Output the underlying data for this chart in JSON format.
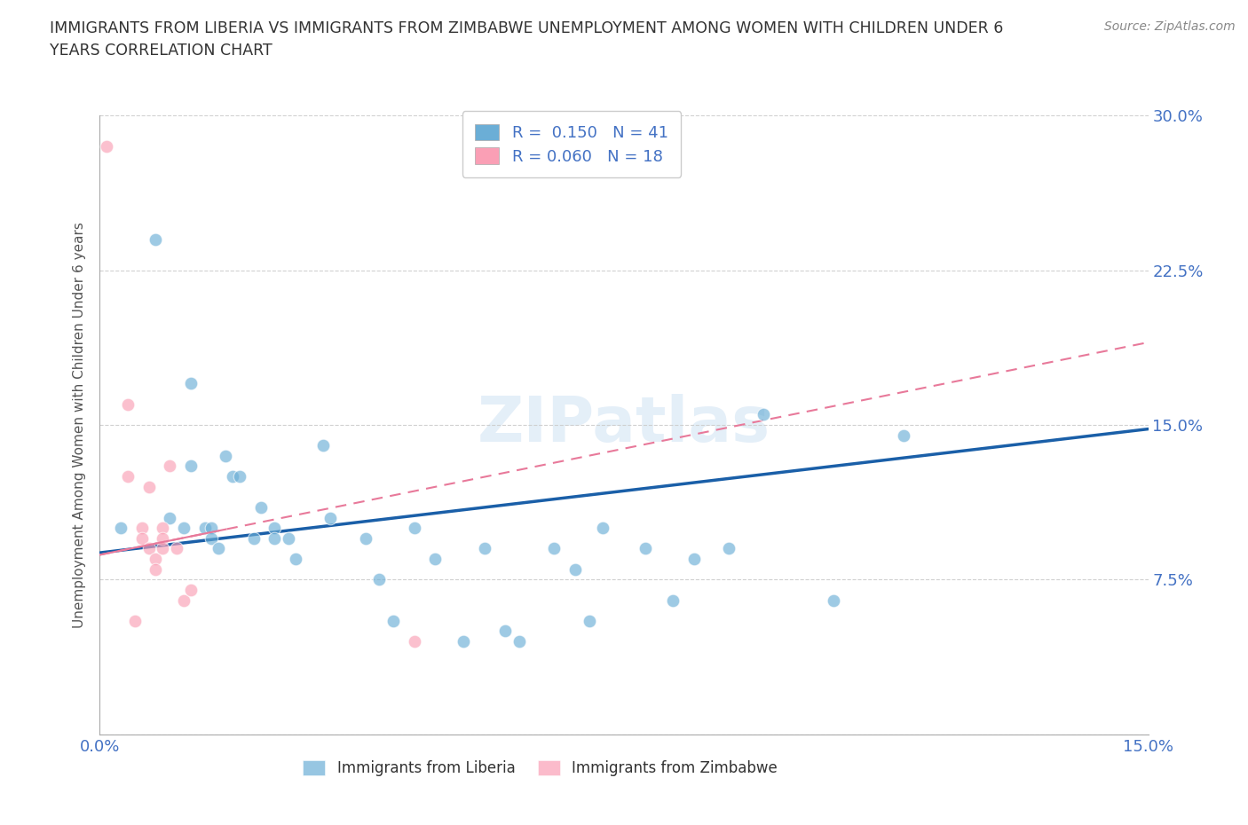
{
  "title": "IMMIGRANTS FROM LIBERIA VS IMMIGRANTS FROM ZIMBABWE UNEMPLOYMENT AMONG WOMEN WITH CHILDREN UNDER 6\nYEARS CORRELATION CHART",
  "source": "Source: ZipAtlas.com",
  "ylabel": "Unemployment Among Women with Children Under 6 years",
  "xlim": [
    0.0,
    0.15
  ],
  "ylim": [
    0.0,
    0.3
  ],
  "xticks": [
    0.0,
    0.025,
    0.05,
    0.075,
    0.1,
    0.125,
    0.15
  ],
  "yticks": [
    0.0,
    0.075,
    0.15,
    0.225,
    0.3
  ],
  "xtick_labels": [
    "0.0%",
    "",
    "",
    "",
    "",
    "",
    "15.0%"
  ],
  "ytick_labels_right": [
    "",
    "7.5%",
    "15.0%",
    "22.5%",
    "30.0%"
  ],
  "liberia_color": "#6baed6",
  "zimbabwe_color": "#fa9fb5",
  "liberia_R": 0.15,
  "liberia_N": 41,
  "zimbabwe_R": 0.06,
  "zimbabwe_N": 18,
  "watermark": "ZIPatlas",
  "liberia_x": [
    0.003,
    0.008,
    0.01,
    0.012,
    0.013,
    0.013,
    0.015,
    0.016,
    0.016,
    0.017,
    0.018,
    0.019,
    0.02,
    0.022,
    0.023,
    0.025,
    0.025,
    0.027,
    0.028,
    0.032,
    0.033,
    0.038,
    0.04,
    0.042,
    0.045,
    0.048,
    0.052,
    0.055,
    0.058,
    0.06,
    0.065,
    0.068,
    0.07,
    0.072,
    0.078,
    0.082,
    0.085,
    0.09,
    0.095,
    0.105,
    0.115
  ],
  "liberia_y": [
    0.1,
    0.24,
    0.105,
    0.1,
    0.17,
    0.13,
    0.1,
    0.1,
    0.095,
    0.09,
    0.135,
    0.125,
    0.125,
    0.095,
    0.11,
    0.1,
    0.095,
    0.095,
    0.085,
    0.14,
    0.105,
    0.095,
    0.075,
    0.055,
    0.1,
    0.085,
    0.045,
    0.09,
    0.05,
    0.045,
    0.09,
    0.08,
    0.055,
    0.1,
    0.09,
    0.065,
    0.085,
    0.09,
    0.155,
    0.065,
    0.145
  ],
  "zimbabwe_x": [
    0.001,
    0.004,
    0.004,
    0.005,
    0.006,
    0.006,
    0.007,
    0.007,
    0.008,
    0.008,
    0.009,
    0.009,
    0.009,
    0.01,
    0.011,
    0.012,
    0.013,
    0.045
  ],
  "zimbabwe_y": [
    0.285,
    0.16,
    0.125,
    0.055,
    0.1,
    0.095,
    0.12,
    0.09,
    0.085,
    0.08,
    0.1,
    0.095,
    0.09,
    0.13,
    0.09,
    0.065,
    0.07,
    0.045
  ],
  "liberia_line_x": [
    0.0,
    0.15
  ],
  "liberia_line_y": [
    0.088,
    0.148
  ],
  "zimbabwe_dashed_line_x": [
    0.0,
    0.15
  ],
  "zimbabwe_dashed_line_y": [
    0.087,
    0.19
  ],
  "grid_color": "#cccccc",
  "background_color": "#ffffff",
  "title_color": "#333333",
  "axis_color": "#4472c4",
  "marker_size": 110
}
